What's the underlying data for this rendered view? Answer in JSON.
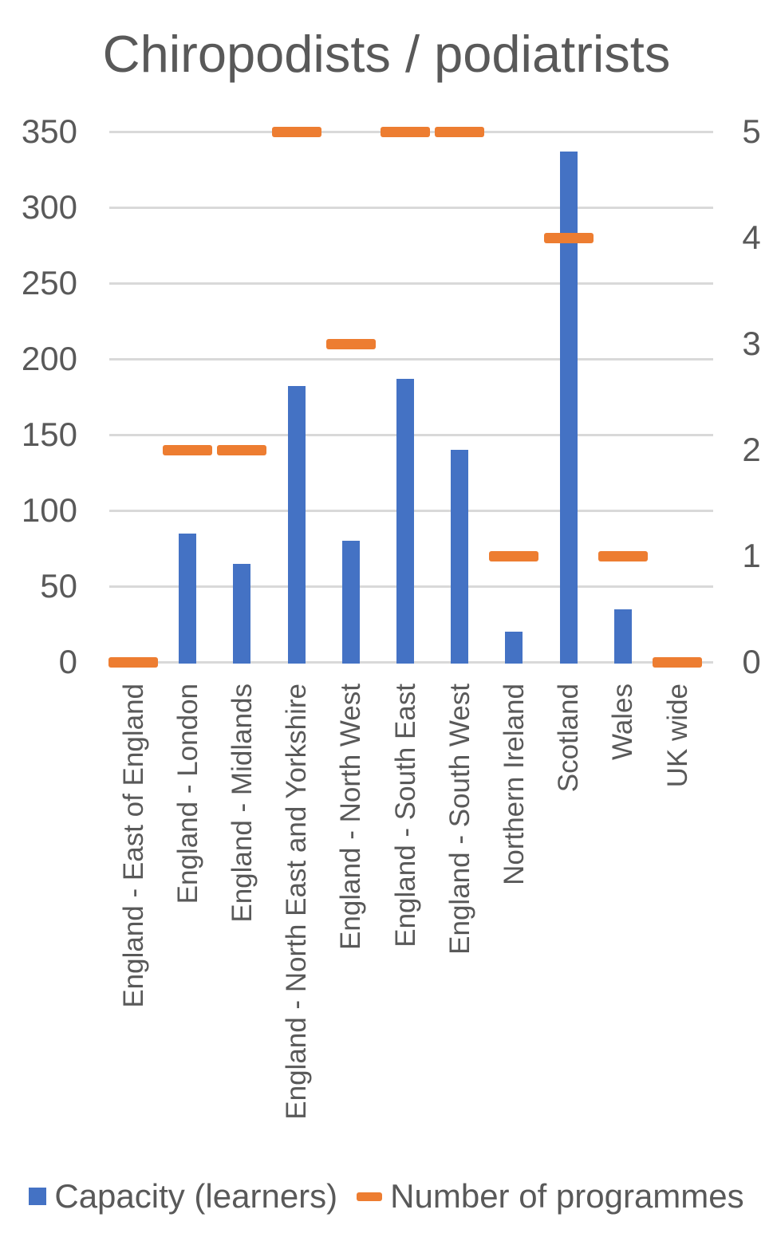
{
  "title": "Chiropodists / podiatrists",
  "legend": [
    {
      "label": "Capacity (learners)",
      "color": "#4472C4",
      "swatch": "square"
    },
    {
      "label": "Number of programmes",
      "color": "#ED7D31",
      "swatch": "dash"
    }
  ],
  "colors": {
    "bar_blue": "#4472C4",
    "dash_orange": "#ED7D31",
    "text_gray": "#595959",
    "gridline_gray": "#D9D9D9"
  },
  "chart_data": {
    "type": "bar",
    "title": "Chiropodists / podiatrists",
    "categories": [
      "England - East of England",
      "England - London",
      "England - Midlands",
      "England - North East and Yorkshire",
      "England - North West",
      "England - South East",
      "England - South West",
      "Northern Ireland",
      "Scotland",
      "Wales",
      "UK wide"
    ],
    "series": [
      {
        "name": "Capacity (learners)",
        "mark": "bar",
        "axis": "left",
        "color": "#4472C4",
        "values": [
          0,
          85,
          65,
          182,
          80,
          187,
          140,
          20,
          337,
          35,
          0
        ]
      },
      {
        "name": "Number of programmes",
        "mark": "dash",
        "axis": "right",
        "color": "#ED7D31",
        "values": [
          0,
          2,
          2,
          5,
          3,
          5,
          5,
          1,
          4,
          1,
          0
        ]
      }
    ],
    "left_axis": {
      "ticks": [
        0,
        50,
        100,
        150,
        200,
        250,
        300,
        350
      ],
      "range": [
        0,
        350
      ]
    },
    "right_axis": {
      "ticks": [
        0,
        1,
        2,
        3,
        4,
        5
      ],
      "range": [
        0,
        5
      ]
    },
    "grid": true,
    "legend_position": "bottom",
    "xlabel": "",
    "ylabel": ""
  }
}
